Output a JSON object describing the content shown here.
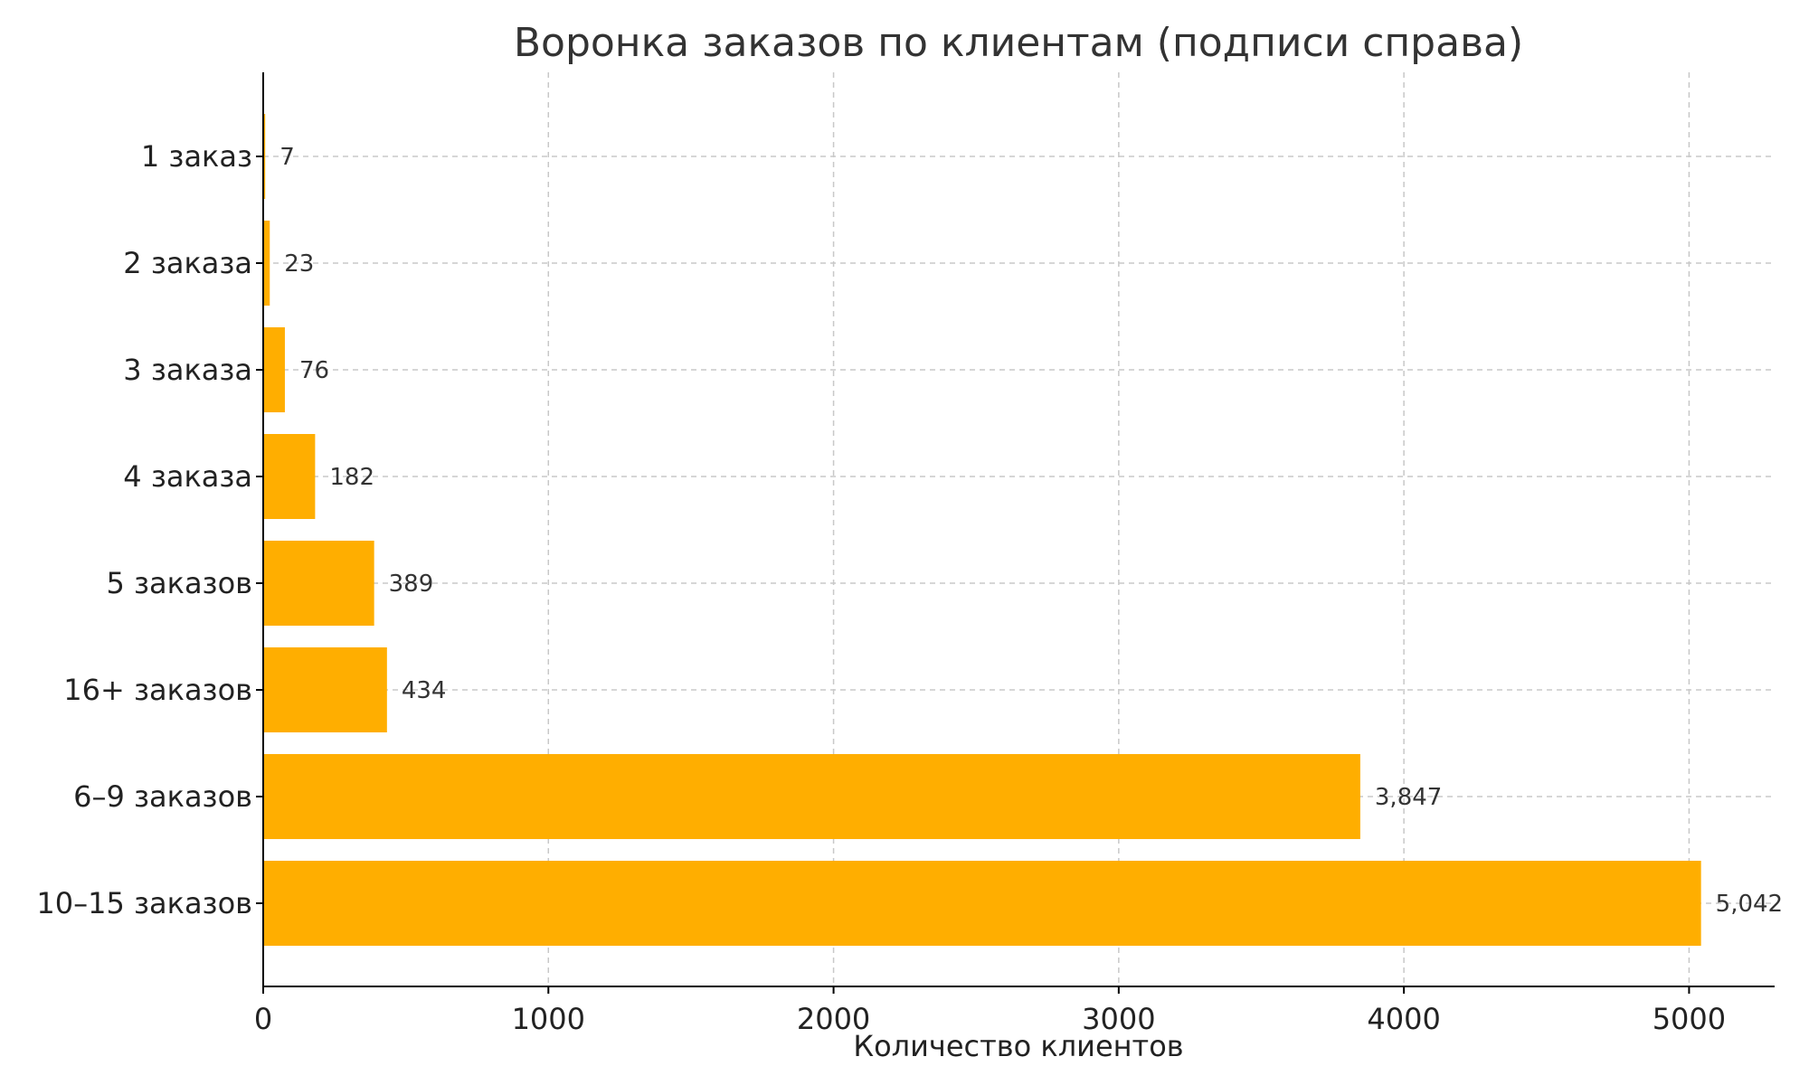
{
  "chart_data": {
    "type": "bar",
    "orientation": "horizontal",
    "title": "Воронка заказов по клиентам (подписи справа)",
    "xlabel": "Количество клиентов",
    "ylabel": "",
    "categories": [
      "1 заказ",
      "2 заказа",
      "3 заказа",
      "4 заказа",
      "5 заказов",
      "16+ заказов",
      "6–9 заказов",
      "10–15 заказов"
    ],
    "values": [
      7,
      23,
      76,
      182,
      389,
      434,
      3847,
      5042
    ],
    "value_labels": [
      "7",
      "23",
      "76",
      "182",
      "389",
      "434",
      "3,847",
      "5,042"
    ],
    "xlim": [
      0,
      5300
    ],
    "x_ticks": [
      0,
      1000,
      2000,
      3000,
      4000,
      5000
    ],
    "x_tick_labels": [
      "0",
      "1000",
      "2000",
      "3000",
      "4000",
      "5000"
    ],
    "grid": true,
    "legend": "none",
    "bar_color": "#FFAE00"
  }
}
